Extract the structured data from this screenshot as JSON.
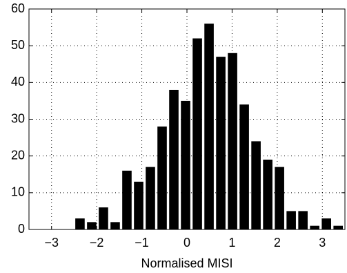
{
  "chart_data": {
    "type": "histogram",
    "xlabel": "Normalised MISI",
    "bins": [
      -2.5,
      -2.24,
      -1.98,
      -1.72,
      -1.46,
      -1.2,
      -0.94,
      -0.68,
      -0.42,
      -0.16,
      0.1,
      0.36,
      0.62,
      0.88,
      1.14,
      1.4,
      1.66,
      1.92,
      2.18,
      2.44,
      2.7,
      2.96,
      3.22,
      3.48
    ],
    "values": [
      3,
      2,
      6,
      2,
      16,
      13,
      17,
      28,
      38,
      35,
      52,
      56,
      47,
      48,
      34,
      24,
      19,
      17,
      5,
      5,
      1,
      3,
      1
    ],
    "color": "#000000",
    "xlim": [
      -3.5,
      3.5
    ],
    "xticks": [
      {
        "value": -3,
        "label": "−3"
      },
      {
        "value": -2,
        "label": "−2"
      },
      {
        "value": -1,
        "label": "−1"
      },
      0,
      1,
      2,
      3
    ],
    "ylim": [
      0,
      60
    ],
    "yticks": [
      0,
      10,
      20,
      30,
      40,
      50,
      60
    ],
    "grid": true
  }
}
